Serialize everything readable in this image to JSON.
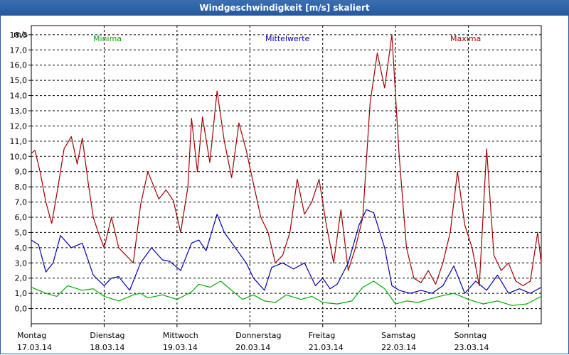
{
  "window": {
    "title": "Windgeschwindigkeit [m/s] skaliert"
  },
  "chart_data": {
    "type": "line",
    "title": "Windgeschwindigkeit [m/s] skaliert",
    "ylabel": "m/s",
    "ylim": [
      -1,
      18.6
    ],
    "yticks": [
      "0,0",
      "1,0",
      "2,0",
      "3,0",
      "4,0",
      "5,0",
      "6,0",
      "7,0",
      "8,0",
      "9,0",
      "10,0",
      "11,0",
      "12,0",
      "13,0",
      "14,0",
      "15,0",
      "16,0",
      "17,0",
      "18,0"
    ],
    "days": [
      {
        "name": "Montag",
        "date": "17.03.14"
      },
      {
        "name": "Dienstag",
        "date": "18.03.14"
      },
      {
        "name": "Mittwoch",
        "date": "19.03.14"
      },
      {
        "name": "Donnerstag",
        "date": "20.03.14"
      },
      {
        "name": "Freitag",
        "date": "21.03.14"
      },
      {
        "name": "Samstag",
        "date": "22.03.14"
      },
      {
        "name": "Sonntag",
        "date": "23.03.14"
      }
    ],
    "x_unit": "day",
    "xlim": [
      0,
      7
    ],
    "grid": true,
    "series": [
      {
        "name": "Minima",
        "color": "#00aa00",
        "x": [
          0,
          0.2,
          0.35,
          0.5,
          0.7,
          0.85,
          1.0,
          1.2,
          1.4,
          1.5,
          1.6,
          1.8,
          2.0,
          2.2,
          2.3,
          2.45,
          2.6,
          2.75,
          2.9,
          3.05,
          3.2,
          3.35,
          3.5,
          3.7,
          3.85,
          4.0,
          4.2,
          4.4,
          4.55,
          4.7,
          4.85,
          5.0,
          5.15,
          5.3,
          5.45,
          5.6,
          5.8,
          6.0,
          6.2,
          6.4,
          6.6,
          6.8,
          7.0
        ],
        "values": [
          1.4,
          1.0,
          0.8,
          1.5,
          1.2,
          1.3,
          0.8,
          0.5,
          0.9,
          1.0,
          0.7,
          0.9,
          0.6,
          1.1,
          1.6,
          1.4,
          1.8,
          1.2,
          0.6,
          0.9,
          0.5,
          0.4,
          0.9,
          0.6,
          0.8,
          0.4,
          0.3,
          0.5,
          1.4,
          1.8,
          1.3,
          0.3,
          0.5,
          0.4,
          0.6,
          0.8,
          1.0,
          0.6,
          0.3,
          0.5,
          0.2,
          0.3,
          0.8
        ]
      },
      {
        "name": "Mittelwerte",
        "color": "#0000b0",
        "x": [
          0,
          0.1,
          0.2,
          0.3,
          0.4,
          0.55,
          0.7,
          0.85,
          1.0,
          1.1,
          1.2,
          1.35,
          1.5,
          1.65,
          1.8,
          1.9,
          2.05,
          2.2,
          2.3,
          2.4,
          2.55,
          2.65,
          2.8,
          2.95,
          3.05,
          3.2,
          3.3,
          3.45,
          3.6,
          3.75,
          3.9,
          4.0,
          4.1,
          4.2,
          4.35,
          4.5,
          4.6,
          4.7,
          4.85,
          4.95,
          5.05,
          5.2,
          5.35,
          5.5,
          5.65,
          5.8,
          5.95,
          6.1,
          6.25,
          6.4,
          6.55,
          6.7,
          6.85,
          7.0
        ],
        "values": [
          4.5,
          4.2,
          2.4,
          3.0,
          4.8,
          4.0,
          4.3,
          2.2,
          1.5,
          2.0,
          2.1,
          1.2,
          3.0,
          4.0,
          3.2,
          3.1,
          2.5,
          4.3,
          4.5,
          3.8,
          6.2,
          5.0,
          4.0,
          3.0,
          2.0,
          1.2,
          2.7,
          3.0,
          2.6,
          3.0,
          1.5,
          2.0,
          1.3,
          1.6,
          3.0,
          5.5,
          6.5,
          6.3,
          4.0,
          1.5,
          1.2,
          1.0,
          1.2,
          1.0,
          1.5,
          2.8,
          1.0,
          1.8,
          1.2,
          2.2,
          1.0,
          1.3,
          1.0,
          1.4
        ]
      },
      {
        "name": "Maxima",
        "color": "#a00000",
        "x": [
          0,
          0.05,
          0.12,
          0.2,
          0.28,
          0.35,
          0.45,
          0.55,
          0.63,
          0.7,
          0.78,
          0.85,
          0.92,
          1.0,
          1.1,
          1.2,
          1.3,
          1.4,
          1.5,
          1.6,
          1.75,
          1.85,
          1.95,
          2.05,
          2.15,
          2.2,
          2.28,
          2.35,
          2.45,
          2.55,
          2.65,
          2.75,
          2.85,
          2.95,
          3.05,
          3.15,
          3.25,
          3.35,
          3.45,
          3.55,
          3.65,
          3.75,
          3.85,
          3.95,
          4.05,
          4.15,
          4.25,
          4.35,
          4.45,
          4.55,
          4.65,
          4.75,
          4.85,
          4.95,
          5.05,
          5.15,
          5.25,
          5.35,
          5.45,
          5.55,
          5.65,
          5.75,
          5.85,
          5.95,
          6.05,
          6.15,
          6.25,
          6.35,
          6.45,
          6.55,
          6.65,
          6.75,
          6.85,
          6.95,
          7.0
        ],
        "values": [
          10.2,
          10.4,
          9.0,
          7.0,
          5.6,
          7.5,
          10.5,
          11.3,
          9.5,
          11.2,
          8.3,
          6.0,
          5.0,
          4.0,
          6.0,
          4.0,
          3.5,
          3.0,
          6.8,
          9.0,
          7.2,
          7.8,
          7.1,
          5.0,
          8.0,
          12.5,
          9.0,
          12.6,
          9.6,
          14.3,
          11.0,
          8.6,
          12.2,
          10.4,
          8.2,
          6.0,
          5.0,
          3.0,
          3.5,
          5.0,
          8.5,
          6.2,
          7.0,
          8.5,
          5.5,
          3.0,
          6.5,
          2.5,
          4.0,
          6.0,
          13.5,
          16.8,
          14.5,
          18.0,
          10.0,
          4.0,
          2.0,
          1.7,
          2.5,
          1.6,
          3.0,
          5.0,
          9.0,
          5.5,
          4.0,
          1.5,
          10.5,
          3.5,
          2.5,
          3.0,
          1.8,
          1.5,
          1.8,
          5.0,
          3.0
        ]
      }
    ]
  }
}
